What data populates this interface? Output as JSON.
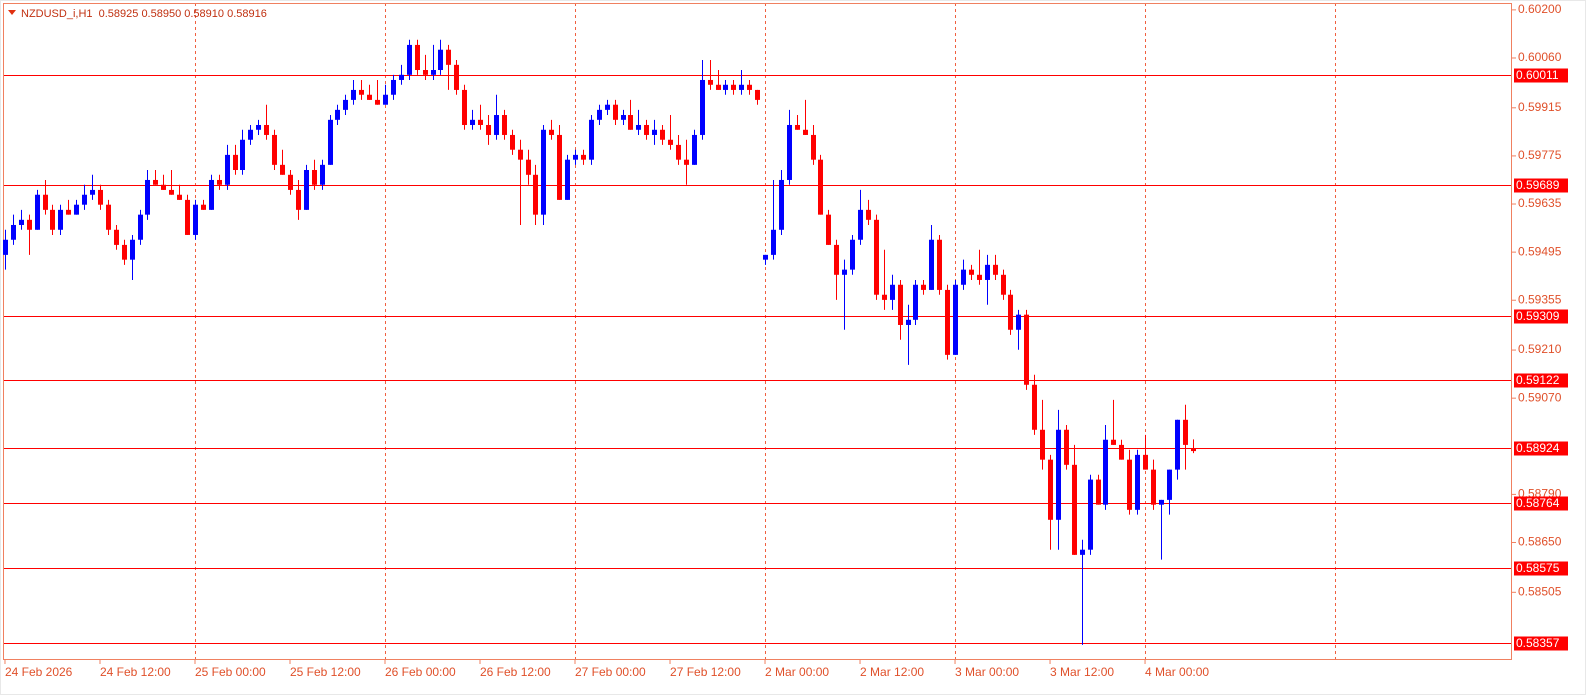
{
  "chart_data": {
    "type": "candlestick",
    "title": "NZDUSD_i,H1  0.58925 0.58950 0.58910 0.58916",
    "up_color": "#0000ff",
    "down_color": "#ff0000",
    "level_color": "#ff0000",
    "grid": true,
    "xlim": [
      -0.25,
      190.35
    ],
    "ylim": [
      0.58308,
      0.6022
    ],
    "xticks": [
      {
        "value": 0,
        "label": "24 Feb 2026"
      },
      {
        "value": 12,
        "label": "24 Feb 12:00"
      },
      {
        "value": 24,
        "label": "25 Feb 00:00"
      },
      {
        "value": 36,
        "label": "25 Feb 12:00"
      },
      {
        "value": 48,
        "label": "26 Feb 00:00"
      },
      {
        "value": 60,
        "label": "26 Feb 12:00"
      },
      {
        "value": 72,
        "label": "27 Feb 00:00"
      },
      {
        "value": 84,
        "label": "27 Feb 12:00"
      },
      {
        "value": 96,
        "label": "2 Mar 00:00"
      },
      {
        "value": 108,
        "label": "2 Mar 12:00"
      },
      {
        "value": 120,
        "label": "3 Mar 00:00"
      },
      {
        "value": 132,
        "label": "3 Mar 12:00"
      },
      {
        "value": 144,
        "label": "4 Mar 00:00"
      }
    ],
    "xgrid": [
      24,
      48,
      72,
      96,
      120,
      144,
      168
    ],
    "yticks": [
      {
        "value": 0.602,
        "label": "0.60200"
      },
      {
        "value": 0.6006,
        "label": "0.60060"
      },
      0.59915,
      0.59775,
      0.59635,
      0.59495,
      0.59355,
      {
        "value": 0.5921,
        "label": "0.59210"
      },
      {
        "value": 0.5907,
        "label": "0.59070"
      },
      {
        "value": 0.5879,
        "label": "0.58790"
      },
      {
        "value": 0.5865,
        "label": "0.58650"
      },
      0.58505
    ],
    "levels": [
      0.60011,
      0.59689,
      0.59309,
      0.59122,
      0.58924,
      0.58764,
      0.58575,
      0.58357
    ],
    "ohlc": [
      [
        0.59487,
        0.5956,
        0.59444,
        0.59531
      ],
      [
        0.59531,
        0.59604,
        0.59516,
        0.59574
      ],
      [
        0.59574,
        0.59618,
        0.5956,
        0.59589
      ],
      [
        0.59589,
        0.59604,
        0.59487,
        0.5956
      ],
      [
        0.5956,
        0.59676,
        0.5956,
        0.59662
      ],
      [
        0.59662,
        0.59705,
        0.59604,
        0.59618
      ],
      [
        0.59618,
        0.59633,
        0.59545,
        0.5956
      ],
      [
        0.5956,
        0.59633,
        0.59545,
        0.59618
      ],
      [
        0.59618,
        0.59647,
        0.59604,
        0.59604
      ],
      [
        0.59604,
        0.59647,
        0.59604,
        0.59633
      ],
      [
        0.59633,
        0.59691,
        0.59618,
        0.59662
      ],
      [
        0.59662,
        0.5972,
        0.59647,
        0.59676
      ],
      [
        0.59676,
        0.59691,
        0.59618,
        0.59633
      ],
      [
        0.59633,
        0.59647,
        0.59545,
        0.5956
      ],
      [
        0.5956,
        0.59574,
        0.59502,
        0.59516
      ],
      [
        0.59516,
        0.59531,
        0.59458,
        0.59473
      ],
      [
        0.59473,
        0.59545,
        0.59414,
        0.59531
      ],
      [
        0.59531,
        0.59618,
        0.59516,
        0.59604
      ],
      [
        0.59604,
        0.59734,
        0.59589,
        0.59705
      ],
      [
        0.59705,
        0.59734,
        0.59691,
        0.59691
      ],
      [
        0.59691,
        0.5972,
        0.59676,
        0.59676
      ],
      [
        0.59676,
        0.59734,
        0.59662,
        0.59662
      ],
      [
        0.59662,
        0.59691,
        0.59647,
        0.59647
      ],
      [
        0.59647,
        0.59662,
        0.59545,
        0.59545
      ],
      [
        0.59545,
        0.59647,
        0.59531,
        0.59633
      ],
      [
        0.59633,
        0.59647,
        0.59618,
        0.59618
      ],
      [
        0.59618,
        0.5972,
        0.59618,
        0.59705
      ],
      [
        0.59705,
        0.5972,
        0.59676,
        0.59691
      ],
      [
        0.59691,
        0.59807,
        0.59676,
        0.59778
      ],
      [
        0.59778,
        0.59807,
        0.5972,
        0.59734
      ],
      [
        0.59734,
        0.59851,
        0.5972,
        0.59822
      ],
      [
        0.59822,
        0.59865,
        0.59807,
        0.59851
      ],
      [
        0.59851,
        0.5988,
        0.59836,
        0.59865
      ],
      [
        0.59865,
        0.59924,
        0.59822,
        0.59836
      ],
      [
        0.59836,
        0.59851,
        0.59734,
        0.59749
      ],
      [
        0.59749,
        0.59793,
        0.5972,
        0.5972
      ],
      [
        0.5972,
        0.59734,
        0.59662,
        0.59676
      ],
      [
        0.59676,
        0.59705,
        0.59589,
        0.59618
      ],
      [
        0.59618,
        0.59749,
        0.59618,
        0.59734
      ],
      [
        0.59734,
        0.59764,
        0.59676,
        0.59691
      ],
      [
        0.59691,
        0.59764,
        0.59676,
        0.59749
      ],
      [
        0.59749,
        0.59894,
        0.59749,
        0.5988
      ],
      [
        0.5988,
        0.59924,
        0.59865,
        0.59909
      ],
      [
        0.59909,
        0.59953,
        0.59894,
        0.59938
      ],
      [
        0.59938,
        0.59996,
        0.59924,
        0.59967
      ],
      [
        0.59967,
        0.59996,
        0.59938,
        0.59953
      ],
      [
        0.59953,
        0.59982,
        0.59938,
        0.59938
      ],
      [
        0.59938,
        0.59996,
        0.59924,
        0.59924
      ],
      [
        0.59924,
        0.59982,
        0.59924,
        0.59953
      ],
      [
        0.59953,
        0.60011,
        0.59938,
        0.59996
      ],
      [
        0.59996,
        0.6004,
        0.59982,
        0.60011
      ],
      [
        0.60011,
        0.60113,
        0.59996,
        0.60098
      ],
      [
        0.60098,
        0.60113,
        0.60011,
        0.60025
      ],
      [
        0.60025,
        0.60069,
        0.59996,
        0.60011
      ],
      [
        0.60011,
        0.60098,
        0.59996,
        0.60025
      ],
      [
        0.60025,
        0.60113,
        0.60011,
        0.60084
      ],
      [
        0.60084,
        0.60098,
        0.59967,
        0.6004
      ],
      [
        0.6004,
        0.60054,
        0.59953,
        0.59967
      ],
      [
        0.59967,
        0.59982,
        0.59851,
        0.59865
      ],
      [
        0.59865,
        0.59909,
        0.59851,
        0.5988
      ],
      [
        0.5988,
        0.59924,
        0.59851,
        0.59865
      ],
      [
        0.59865,
        0.59894,
        0.59807,
        0.59836
      ],
      [
        0.59836,
        0.59953,
        0.59822,
        0.59894
      ],
      [
        0.59894,
        0.59909,
        0.59822,
        0.59836
      ],
      [
        0.59836,
        0.59851,
        0.59778,
        0.59793
      ],
      [
        0.59793,
        0.59822,
        0.59574,
        0.59764
      ],
      [
        0.59764,
        0.59793,
        0.59691,
        0.5972
      ],
      [
        0.5972,
        0.59749,
        0.59574,
        0.59604
      ],
      [
        0.59604,
        0.59865,
        0.59574,
        0.59851
      ],
      [
        0.59851,
        0.5988,
        0.59822,
        0.59836
      ],
      [
        0.59836,
        0.59865,
        0.59647,
        0.59647
      ],
      [
        0.59647,
        0.59778,
        0.59647,
        0.59764
      ],
      [
        0.59764,
        0.59793,
        0.59749,
        0.59778
      ],
      [
        0.59778,
        0.59793,
        0.59749,
        0.59764
      ],
      [
        0.59764,
        0.59894,
        0.59749,
        0.5988
      ],
      [
        0.5988,
        0.59924,
        0.59865,
        0.59909
      ],
      [
        0.59909,
        0.59938,
        0.59894,
        0.59924
      ],
      [
        0.59924,
        0.59938,
        0.59865,
        0.5988
      ],
      [
        0.5988,
        0.59909,
        0.59865,
        0.59894
      ],
      [
        0.59894,
        0.59938,
        0.59851,
        0.59851
      ],
      [
        0.59851,
        0.59909,
        0.59836,
        0.59865
      ],
      [
        0.59865,
        0.5988,
        0.59822,
        0.59836
      ],
      [
        0.59836,
        0.5988,
        0.59807,
        0.59851
      ],
      [
        0.59851,
        0.59865,
        0.59807,
        0.59822
      ],
      [
        0.59822,
        0.59894,
        0.59793,
        0.59807
      ],
      [
        0.59807,
        0.59836,
        0.59749,
        0.59764
      ],
      [
        0.59764,
        0.59822,
        0.59691,
        0.59749
      ],
      [
        0.59749,
        0.59851,
        0.59749,
        0.59836
      ],
      [
        0.59836,
        0.60054,
        0.59822,
        0.59996
      ],
      [
        0.59996,
        0.60054,
        0.59967,
        0.59982
      ],
      [
        0.59982,
        0.60025,
        0.59967,
        0.59967
      ],
      [
        0.59967,
        0.59996,
        0.59953,
        0.59982
      ],
      [
        0.59982,
        0.59996,
        0.59953,
        0.59967
      ],
      [
        0.59967,
        0.60025,
        0.59953,
        0.59982
      ],
      [
        0.59982,
        0.59996,
        0.59953,
        0.59967
      ],
      [
        0.59967,
        0.59967,
        0.59924,
        0.59938
      ],
      [
        0.59473,
        0.59487,
        0.59458,
        0.59487
      ],
      [
        0.59487,
        0.59705,
        0.59473,
        0.5956
      ],
      [
        0.5956,
        0.59734,
        0.59545,
        0.59705
      ],
      [
        0.59705,
        0.59909,
        0.59691,
        0.59865
      ],
      [
        0.59865,
        0.59894,
        0.59851,
        0.59851
      ],
      [
        0.59851,
        0.59938,
        0.59836,
        0.59836
      ],
      [
        0.59836,
        0.59865,
        0.59749,
        0.59764
      ],
      [
        0.59764,
        0.59778,
        0.59604,
        0.59604
      ],
      [
        0.59604,
        0.59618,
        0.59516,
        0.59516
      ],
      [
        0.59516,
        0.59531,
        0.59356,
        0.59429
      ],
      [
        0.59429,
        0.59473,
        0.59269,
        0.59444
      ],
      [
        0.59444,
        0.59545,
        0.59429,
        0.59531
      ],
      [
        0.59531,
        0.59676,
        0.59516,
        0.59618
      ],
      [
        0.59618,
        0.59647,
        0.59574,
        0.59589
      ],
      [
        0.59589,
        0.59604,
        0.59356,
        0.59371
      ],
      [
        0.59371,
        0.59502,
        0.59327,
        0.59356
      ],
      [
        0.59356,
        0.59429,
        0.59327,
        0.594
      ],
      [
        0.594,
        0.59414,
        0.5924,
        0.59283
      ],
      [
        0.59283,
        0.59342,
        0.59167,
        0.59298
      ],
      [
        0.59298,
        0.59414,
        0.59283,
        0.594
      ],
      [
        0.594,
        0.59414,
        0.59371,
        0.59385
      ],
      [
        0.59385,
        0.59574,
        0.59385,
        0.59531
      ],
      [
        0.59531,
        0.59545,
        0.59371,
        0.59385
      ],
      [
        0.59385,
        0.594,
        0.59182,
        0.59196
      ],
      [
        0.59196,
        0.59414,
        0.59196,
        0.594
      ],
      [
        0.594,
        0.59473,
        0.59385,
        0.59444
      ],
      [
        0.59444,
        0.59458,
        0.59414,
        0.59429
      ],
      [
        0.59429,
        0.59502,
        0.594,
        0.59414
      ],
      [
        0.59414,
        0.59487,
        0.59342,
        0.59458
      ],
      [
        0.59458,
        0.59487,
        0.59414,
        0.59429
      ],
      [
        0.59429,
        0.59444,
        0.59356,
        0.59371
      ],
      [
        0.59371,
        0.59385,
        0.59254,
        0.59269
      ],
      [
        0.59269,
        0.59327,
        0.59211,
        0.59313
      ],
      [
        0.59313,
        0.59327,
        0.59094,
        0.59109
      ],
      [
        0.59109,
        0.59138,
        0.58963,
        0.58978
      ],
      [
        0.58978,
        0.59065,
        0.58862,
        0.58891
      ],
      [
        0.58891,
        0.58905,
        0.58629,
        0.58716
      ],
      [
        0.58716,
        0.59036,
        0.58629,
        0.58978
      ],
      [
        0.58978,
        0.58992,
        0.58862,
        0.58876
      ],
      [
        0.58876,
        0.58934,
        0.58614,
        0.58614
      ],
      [
        0.58614,
        0.58658,
        0.58352,
        0.58629
      ],
      [
        0.58629,
        0.58847,
        0.58614,
        0.58833
      ],
      [
        0.58833,
        0.58847,
        0.5876,
        0.5876
      ],
      [
        0.5876,
        0.58992,
        0.58745,
        0.58949
      ],
      [
        0.58949,
        0.59065,
        0.58934,
        0.58934
      ],
      [
        0.58934,
        0.58949,
        0.58891,
        0.58891
      ],
      [
        0.58891,
        0.5892,
        0.58731,
        0.58745
      ],
      [
        0.58745,
        0.5892,
        0.58731,
        0.58905
      ],
      [
        0.58905,
        0.58963,
        0.58862,
        0.58862
      ],
      [
        0.58862,
        0.58891,
        0.58745,
        0.5876
      ],
      [
        0.5876,
        0.58774,
        0.586,
        0.58774
      ],
      [
        0.58774,
        0.58862,
        0.58731,
        0.58862
      ],
      [
        0.58862,
        0.59007,
        0.58833,
        0.59007
      ],
      [
        0.59007,
        0.59051,
        0.58862,
        0.58934
      ],
      [
        0.58925,
        0.5895,
        0.5891,
        0.58916
      ]
    ]
  }
}
